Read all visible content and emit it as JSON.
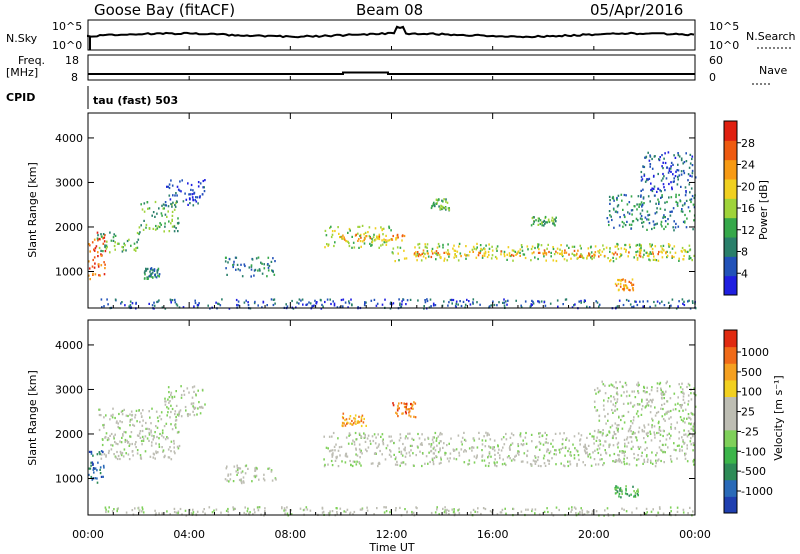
{
  "header": {
    "site": "Goose Bay (fitACF)",
    "beam": "Beam 08",
    "date": "05/Apr/2016"
  },
  "strip_panels": {
    "nsky_label": "N.Sky",
    "nsky_ticks": [
      "10^5",
      "10^0"
    ],
    "nsearch_label": "N.Search",
    "nsearch_ticks": [
      "10^5",
      "10^0"
    ],
    "freq_label_1": "Freq.",
    "freq_label_2": "[MHz]",
    "freq_ticks": [
      "18",
      "8"
    ],
    "nave_label": "Nave",
    "nave_ticks": [
      "60",
      "0"
    ],
    "cpid_label": "CPID",
    "cpid_text": "tau (fast) 503"
  },
  "x_axis": {
    "label": "Time UT",
    "ticks": [
      "00:00",
      "04:00",
      "08:00",
      "12:00",
      "16:00",
      "20:00",
      "00:00"
    ],
    "range_hours": [
      0,
      24
    ]
  },
  "colorbars": {
    "power": {
      "label": "Power [dB]",
      "ticks": [
        "4",
        "8",
        "12",
        "16",
        "20",
        "24",
        "28"
      ],
      "colors": [
        "#1f1fe0",
        "#2252b8",
        "#2a7f6a",
        "#36a84a",
        "#9fd33a",
        "#f0d020",
        "#f79a14",
        "#ee5a10",
        "#e02010"
      ]
    },
    "velocity": {
      "label": "Velocity [m s⁻¹]",
      "ticks": [
        "1000",
        "500",
        "100",
        "25",
        "-25",
        "-100",
        "-500",
        "-1000"
      ],
      "colors": [
        "#1f3fb0",
        "#2a6ab8",
        "#2e8b57",
        "#3cb54a",
        "#7fd05a",
        "#bdbdb3",
        "#bdbdb3",
        "#f2d020",
        "#f5a020",
        "#f06a18",
        "#e02a10"
      ]
    }
  },
  "chart_data": [
    {
      "type": "heatmap",
      "name": "Power",
      "ylabel": "Slant Range [km]",
      "ylim": [
        180,
        4560
      ],
      "yticks": [
        1000,
        2000,
        3000,
        4000
      ],
      "regions": [
        {
          "t0": 0.0,
          "t1": 0.7,
          "r0": 850,
          "r1": 1900,
          "level": 7
        },
        {
          "t0": 0.3,
          "t1": 2.0,
          "r0": 1450,
          "r1": 1900,
          "level": 3
        },
        {
          "t0": 2.0,
          "t1": 3.6,
          "r0": 1900,
          "r1": 2600,
          "level": 3
        },
        {
          "t0": 3.0,
          "t1": 4.6,
          "r0": 2500,
          "r1": 3100,
          "level": 1
        },
        {
          "t0": 2.2,
          "t1": 2.8,
          "r0": 850,
          "r1": 1100,
          "level": 2
        },
        {
          "t0": 5.4,
          "t1": 7.4,
          "r0": 900,
          "r1": 1350,
          "level": 2
        },
        {
          "t0": 9.3,
          "t1": 12.0,
          "r0": 1550,
          "r1": 2050,
          "level": 4
        },
        {
          "t0": 10.0,
          "t1": 12.5,
          "r0": 1700,
          "r1": 1850,
          "level": 6
        },
        {
          "t0": 12.0,
          "t1": 24.0,
          "r0": 1250,
          "r1": 1650,
          "level": 4
        },
        {
          "t0": 12.5,
          "t1": 23.5,
          "r0": 1350,
          "r1": 1500,
          "level": 6
        },
        {
          "t0": 13.5,
          "t1": 14.3,
          "r0": 2400,
          "r1": 2650,
          "level": 3
        },
        {
          "t0": 17.5,
          "t1": 18.5,
          "r0": 2050,
          "r1": 2250,
          "level": 3
        },
        {
          "t0": 20.5,
          "t1": 24.0,
          "r0": 1950,
          "r1": 2750,
          "level": 2
        },
        {
          "t0": 20.8,
          "t1": 21.6,
          "r0": 600,
          "r1": 850,
          "level": 6
        },
        {
          "t0": 21.8,
          "t1": 24.0,
          "r0": 2800,
          "r1": 3700,
          "level": 1
        },
        {
          "t0": 0.5,
          "t1": 24.0,
          "r0": 190,
          "r1": 400,
          "level": 1
        }
      ]
    },
    {
      "type": "heatmap",
      "name": "Velocity",
      "ylabel": "Slant Range [km]",
      "ylim": [
        180,
        4560
      ],
      "yticks": [
        1000,
        2000,
        3000,
        4000
      ],
      "regions": [
        {
          "t0": 0.0,
          "t1": 0.6,
          "r0": 900,
          "r1": 1700,
          "level": 1
        },
        {
          "t0": 0.4,
          "t1": 3.6,
          "r0": 1450,
          "r1": 2600,
          "level": 5
        },
        {
          "t0": 3.0,
          "t1": 4.6,
          "r0": 2400,
          "r1": 3100,
          "level": 5
        },
        {
          "t0": 5.4,
          "t1": 7.4,
          "r0": 900,
          "r1": 1350,
          "level": 5
        },
        {
          "t0": 9.3,
          "t1": 24.0,
          "r0": 1300,
          "r1": 2050,
          "level": 5
        },
        {
          "t0": 12.0,
          "t1": 13.0,
          "r0": 2350,
          "r1": 2750,
          "level": 9
        },
        {
          "t0": 10.0,
          "t1": 11.0,
          "r0": 2200,
          "r1": 2500,
          "level": 8
        },
        {
          "t0": 20.8,
          "t1": 21.8,
          "r0": 600,
          "r1": 850,
          "level": 3
        },
        {
          "t0": 20.0,
          "t1": 24.0,
          "r0": 2000,
          "r1": 3200,
          "level": 5
        },
        {
          "t0": 0.5,
          "t1": 24.0,
          "r0": 190,
          "r1": 380,
          "level": 5
        }
      ]
    }
  ]
}
